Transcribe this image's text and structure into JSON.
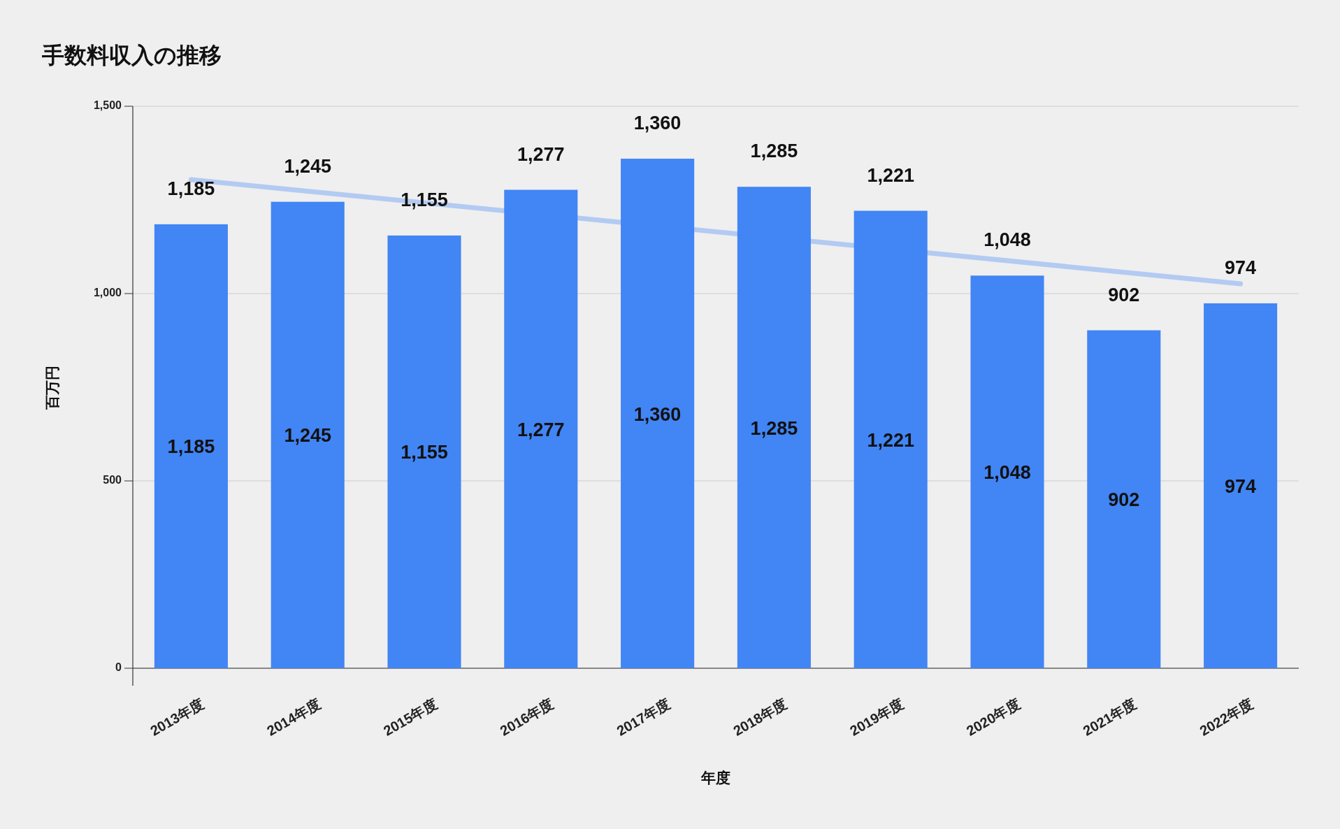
{
  "chart_data": {
    "type": "bar",
    "title": "手数料収入の推移",
    "xlabel": "年度",
    "ylabel": "百万円",
    "categories": [
      "2013年度",
      "2014年度",
      "2015年度",
      "2016年度",
      "2017年度",
      "2018年度",
      "2019年度",
      "2020年度",
      "2021年度",
      "2022年度"
    ],
    "series": [
      {
        "color": "#4285f4",
        "values": [
          1185,
          1245,
          1155,
          1277,
          1360,
          1285,
          1221,
          1048,
          902,
          974
        ],
        "value_labels": [
          "1,185",
          "1,245",
          "1,155",
          "1,277",
          "1,360",
          "1,285",
          "1,221",
          "1,048",
          "902",
          "974"
        ]
      },
      {
        "type": "line",
        "color": "#a8c4f2",
        "x": [
          "2013年度",
          "2022年度"
        ],
        "values": [
          1304,
          1026
        ]
      }
    ],
    "ylim": [
      0,
      1500
    ],
    "yticks": [
      {
        "value": 0,
        "label": "0"
      },
      {
        "value": 500,
        "label": "500"
      },
      {
        "value": 1000,
        "label": "1,000"
      },
      {
        "value": 1500,
        "label": "1,500"
      }
    ],
    "grid": "y"
  }
}
